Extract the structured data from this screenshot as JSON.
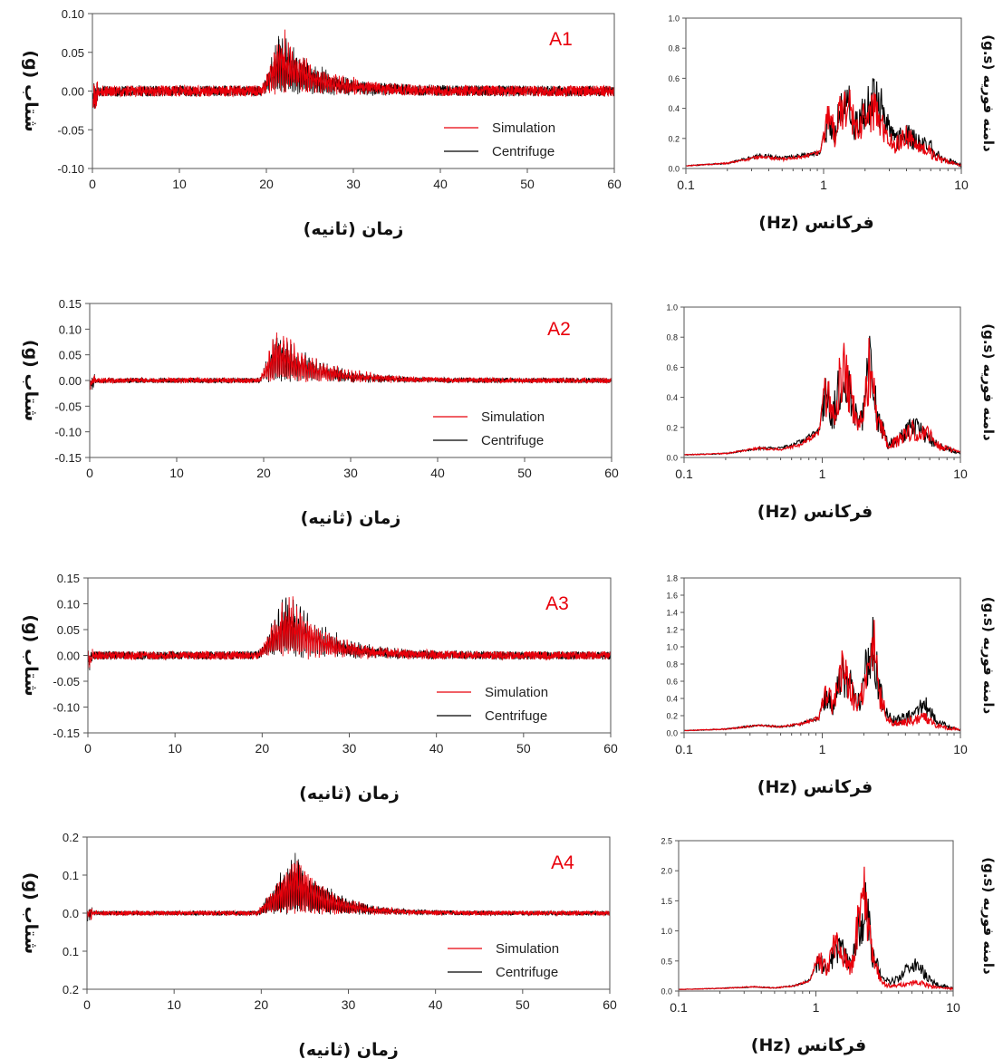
{
  "colors": {
    "simulation": "#e8000b",
    "centrifuge": "#000000",
    "frame": "#555555",
    "label": "#e8000b"
  },
  "labels": {
    "time_xlabel": "زمان (ثانیه)",
    "accel_ylabel": "شتاب (g)",
    "freq_xlabel": "فرکانس (Hz)",
    "fourier_ylabel": "دامنه فوریه (g.s)",
    "legend_simulation": "Simulation",
    "legend_centrifuge": "Centrifuge"
  },
  "chart_data": [
    {
      "type": "line",
      "panel": "A1",
      "x_range": [
        0,
        60
      ],
      "x_ticks": [
        0,
        10,
        20,
        30,
        40,
        50,
        60
      ],
      "ylim": [
        -0.1,
        0.1
      ],
      "y_ticks": [
        "0.10",
        "0.05",
        "0.00",
        "-0.05",
        "-0.10"
      ],
      "strong_motion": {
        "start_s": 19.5,
        "peak_s": 21.5,
        "end_s": 35,
        "peak_g": 0.07,
        "noise_g": 0.007
      },
      "series": [
        {
          "name": "Simulation",
          "peak_positive_g": 0.069,
          "peak_negative_g": -0.085
        },
        {
          "name": "Centrifuge",
          "peak_positive_g": 0.068,
          "peak_negative_g": -0.083
        }
      ]
    },
    {
      "type": "line",
      "panel": "A1-fourier",
      "xscale": "log",
      "x_range": [
        0.1,
        10
      ],
      "x_ticks": [
        "0.1",
        "1",
        "10"
      ],
      "ylim": [
        0,
        1.0
      ],
      "y_ticks": [
        "1.0",
        "0.8",
        "0.6",
        "0.4",
        "0.2",
        "0.0"
      ],
      "series": [
        {
          "name": "Simulation",
          "x": [
            0.1,
            0.2,
            0.35,
            0.5,
            0.7,
            0.95,
            1.1,
            1.2,
            1.3,
            1.5,
            1.7,
            2.0,
            2.3,
            2.7,
            3.3,
            4.0,
            5.0,
            6.0,
            7.0,
            10.0
          ],
          "values": [
            0.02,
            0.04,
            0.09,
            0.07,
            0.09,
            0.12,
            0.5,
            0.3,
            0.52,
            0.64,
            0.35,
            0.45,
            0.55,
            0.4,
            0.2,
            0.3,
            0.2,
            0.15,
            0.08,
            0.03
          ]
        },
        {
          "name": "Centrifuge",
          "x": [
            0.1,
            0.2,
            0.35,
            0.5,
            0.7,
            0.95,
            1.1,
            1.2,
            1.3,
            1.5,
            1.7,
            2.0,
            2.3,
            2.7,
            3.3,
            4.0,
            5.0,
            6.0,
            7.0,
            10.0
          ],
          "values": [
            0.02,
            0.04,
            0.1,
            0.08,
            0.1,
            0.12,
            0.48,
            0.28,
            0.5,
            0.6,
            0.38,
            0.5,
            0.71,
            0.5,
            0.25,
            0.32,
            0.23,
            0.2,
            0.1,
            0.03
          ]
        }
      ]
    },
    {
      "type": "line",
      "panel": "A2",
      "x_range": [
        0,
        60
      ],
      "x_ticks": [
        0,
        10,
        20,
        30,
        40,
        50,
        60
      ],
      "ylim": [
        -0.15,
        0.15
      ],
      "y_ticks": [
        "0.15",
        "0.10",
        "0.05",
        "0.00",
        "-0.05",
        "-0.10",
        "-0.15"
      ],
      "strong_motion": {
        "start_s": 19.5,
        "peak_s": 21.5,
        "end_s": 36,
        "peak_g": 0.08,
        "noise_g": 0.005
      },
      "series": [
        {
          "name": "Simulation",
          "peak_positive_g": 0.082,
          "peak_negative_g": -0.113
        },
        {
          "name": "Centrifuge",
          "peak_positive_g": 0.08,
          "peak_negative_g": -0.11
        }
      ]
    },
    {
      "type": "line",
      "panel": "A2-fourier",
      "xscale": "log",
      "x_range": [
        0.1,
        10
      ],
      "x_ticks": [
        "0.1",
        "1",
        "10"
      ],
      "ylim": [
        0,
        1.0
      ],
      "y_ticks": [
        "1.0",
        "0.8",
        "0.6",
        "0.4",
        "0.2",
        "0.0"
      ],
      "series": [
        {
          "name": "Simulation",
          "x": [
            0.1,
            0.2,
            0.35,
            0.5,
            0.7,
            0.95,
            1.05,
            1.2,
            1.4,
            1.6,
            1.8,
            2.0,
            2.2,
            2.5,
            3.0,
            3.5,
            4.5,
            5.5,
            7.0,
            10.0
          ],
          "values": [
            0.02,
            0.03,
            0.07,
            0.06,
            0.1,
            0.2,
            0.6,
            0.4,
            0.8,
            0.6,
            0.25,
            0.4,
            0.85,
            0.35,
            0.1,
            0.15,
            0.25,
            0.25,
            0.1,
            0.04
          ]
        },
        {
          "name": "Centrifuge",
          "x": [
            0.1,
            0.2,
            0.35,
            0.5,
            0.7,
            0.95,
            1.05,
            1.2,
            1.4,
            1.6,
            1.8,
            2.0,
            2.2,
            2.5,
            3.0,
            3.5,
            4.5,
            5.5,
            7.0,
            10.0
          ],
          "values": [
            0.02,
            0.03,
            0.07,
            0.07,
            0.12,
            0.2,
            0.55,
            0.38,
            0.78,
            0.62,
            0.3,
            0.4,
            0.88,
            0.38,
            0.12,
            0.15,
            0.28,
            0.22,
            0.1,
            0.04
          ]
        }
      ]
    },
    {
      "type": "line",
      "panel": "A3",
      "x_range": [
        0,
        60
      ],
      "x_ticks": [
        0,
        10,
        20,
        30,
        40,
        50,
        60
      ],
      "ylim": [
        -0.15,
        0.15
      ],
      "y_ticks": [
        "0.15",
        "0.10",
        "0.05",
        "0.00",
        "-0.05",
        "-0.10",
        "-0.15"
      ],
      "strong_motion": {
        "start_s": 19.5,
        "peak_s": 23,
        "end_s": 36,
        "peak_g": 0.11,
        "noise_g": 0.008
      },
      "series": [
        {
          "name": "Simulation",
          "peak_positive_g": 0.11,
          "peak_negative_g": -0.13
        },
        {
          "name": "Centrifuge",
          "peak_positive_g": 0.105,
          "peak_negative_g": -0.14
        }
      ]
    },
    {
      "type": "line",
      "panel": "A3-fourier",
      "xscale": "log",
      "x_range": [
        0.1,
        10
      ],
      "x_ticks": [
        "0.1",
        "1",
        "10"
      ],
      "ylim": [
        0,
        1.8
      ],
      "y_ticks": [
        "1.8",
        "1.6",
        "1.4",
        "1.2",
        "1.0",
        "0.8",
        "0.6",
        "0.4",
        "0.2",
        "0.0"
      ],
      "series": [
        {
          "name": "Simulation",
          "x": [
            0.1,
            0.2,
            0.35,
            0.5,
            0.7,
            0.95,
            1.05,
            1.2,
            1.4,
            1.6,
            1.8,
            2.0,
            2.3,
            2.6,
            3.0,
            3.5,
            4.5,
            5.5,
            7.0,
            10.0
          ],
          "values": [
            0.03,
            0.05,
            0.1,
            0.08,
            0.12,
            0.2,
            0.65,
            0.45,
            1.0,
            0.7,
            0.4,
            0.8,
            1.6,
            0.6,
            0.2,
            0.15,
            0.2,
            0.25,
            0.1,
            0.05
          ]
        },
        {
          "name": "Centrifuge",
          "x": [
            0.1,
            0.2,
            0.35,
            0.5,
            0.7,
            0.95,
            1.05,
            1.2,
            1.4,
            1.6,
            1.8,
            2.0,
            2.3,
            2.6,
            3.0,
            3.5,
            4.5,
            5.5,
            7.0,
            10.0
          ],
          "values": [
            0.03,
            0.05,
            0.1,
            0.08,
            0.12,
            0.2,
            0.6,
            0.42,
            0.95,
            0.75,
            0.4,
            0.85,
            1.5,
            0.65,
            0.25,
            0.2,
            0.3,
            0.45,
            0.15,
            0.05
          ]
        }
      ]
    },
    {
      "type": "line",
      "panel": "A4",
      "x_range": [
        0,
        60
      ],
      "x_ticks": [
        0,
        10,
        20,
        30,
        40,
        50,
        60
      ],
      "ylim": [
        -0.2,
        0.2
      ],
      "y_ticks": [
        "0.2",
        "0.1",
        "0.0",
        "0.1",
        "0.2"
      ],
      "strong_motion": {
        "start_s": 19.5,
        "peak_s": 24,
        "end_s": 36,
        "peak_g": 0.15,
        "noise_g": 0.006
      },
      "series": [
        {
          "name": "Simulation",
          "peak_positive_g": 0.16,
          "peak_negative_g": -0.15
        },
        {
          "name": "Centrifuge",
          "peak_positive_g": 0.15,
          "peak_negative_g": -0.175
        }
      ]
    },
    {
      "type": "line",
      "panel": "A4-fourier",
      "xscale": "log",
      "x_range": [
        0.1,
        10
      ],
      "x_ticks": [
        "0.1",
        "1",
        "10"
      ],
      "ylim": [
        0,
        2.5
      ],
      "y_ticks": [
        "2.5",
        "2.0",
        "1.5",
        "1.0",
        "0.5",
        "0.0"
      ],
      "series": [
        {
          "name": "Simulation",
          "x": [
            0.1,
            0.2,
            0.35,
            0.5,
            0.7,
            0.9,
            1.05,
            1.2,
            1.4,
            1.6,
            1.8,
            2.0,
            2.3,
            2.6,
            3.0,
            3.5,
            4.5,
            5.5,
            7.0,
            10.0
          ],
          "values": [
            0.03,
            0.05,
            0.08,
            0.06,
            0.1,
            0.2,
            0.7,
            0.5,
            1.1,
            0.8,
            0.5,
            1.5,
            2.2,
            0.8,
            0.2,
            0.1,
            0.15,
            0.2,
            0.1,
            0.05
          ]
        },
        {
          "name": "Centrifuge",
          "x": [
            0.1,
            0.2,
            0.35,
            0.5,
            0.7,
            0.9,
            1.05,
            1.2,
            1.4,
            1.6,
            1.8,
            2.0,
            2.3,
            2.6,
            3.0,
            3.5,
            4.5,
            5.5,
            7.0,
            10.0
          ],
          "values": [
            0.03,
            0.05,
            0.08,
            0.06,
            0.1,
            0.2,
            0.65,
            0.45,
            1.05,
            0.85,
            0.5,
            1.4,
            2.0,
            0.85,
            0.3,
            0.2,
            0.45,
            0.6,
            0.2,
            0.06
          ]
        }
      ]
    }
  ]
}
